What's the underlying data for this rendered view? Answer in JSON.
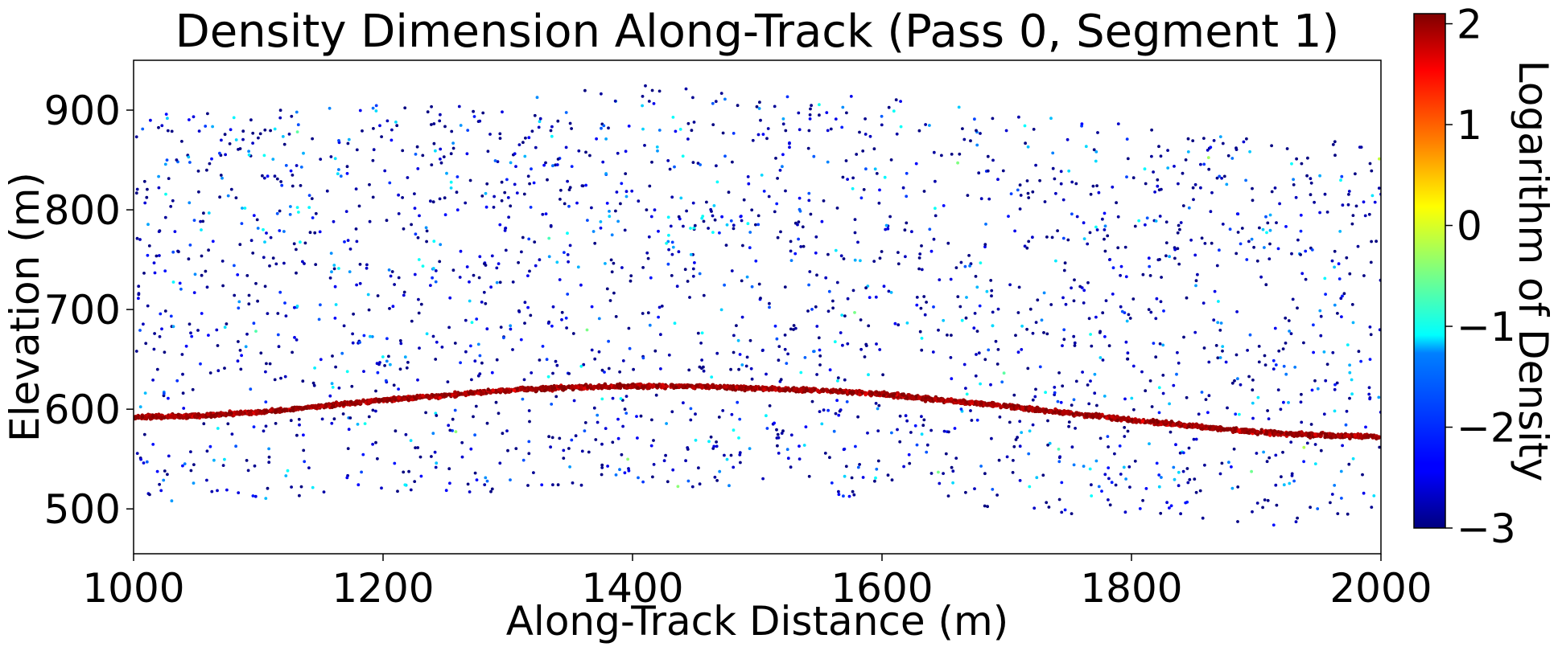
{
  "chart_data": {
    "type": "scatter",
    "title": "Density Dimension Along-Track (Pass 0, Segment 1)",
    "xlabel": "Along-Track Distance (m)",
    "ylabel": "Elevation (m)",
    "xlim": [
      1000,
      2000
    ],
    "ylim": [
      455,
      950
    ],
    "xticks": [
      1000,
      1200,
      1400,
      1600,
      1800,
      2000
    ],
    "yticks": [
      500,
      600,
      700,
      800,
      900
    ],
    "grid": false,
    "legend": "none",
    "colorbar": {
      "label": "Logarithm of Density",
      "range": [
        -3,
        2.1
      ],
      "ticks": [
        -3,
        -2,
        -1,
        0,
        1,
        2
      ],
      "colormap": "jet"
    },
    "ground_profile": {
      "x": [
        1000,
        1050,
        1100,
        1150,
        1200,
        1250,
        1300,
        1350,
        1400,
        1450,
        1500,
        1550,
        1600,
        1650,
        1700,
        1750,
        1800,
        1850,
        1900,
        1950,
        2000
      ],
      "y": [
        592,
        593,
        597,
        603,
        609,
        614,
        619,
        622,
        623,
        623,
        621,
        619,
        615,
        609,
        603,
        596,
        589,
        583,
        577,
        574,
        572
      ],
      "log_density_range": [
        1.3,
        2.1
      ]
    },
    "noise": {
      "x_range": [
        1000,
        2000
      ],
      "lower_bound_y": [
        [
          1000,
          505
        ],
        [
          1200,
          510
        ],
        [
          1400,
          525
        ],
        [
          1600,
          510
        ],
        [
          1700,
          500
        ],
        [
          1800,
          490
        ],
        [
          1900,
          483
        ],
        [
          2000,
          485
        ]
      ],
      "upper_bound_y": [
        [
          1000,
          895
        ],
        [
          1200,
          905
        ],
        [
          1400,
          925
        ],
        [
          1500,
          922
        ],
        [
          1600,
          912
        ],
        [
          1700,
          900
        ],
        [
          1800,
          885
        ],
        [
          1900,
          875
        ],
        [
          2000,
          865
        ]
      ],
      "log_density_range": [
        -3,
        -1
      ]
    }
  }
}
